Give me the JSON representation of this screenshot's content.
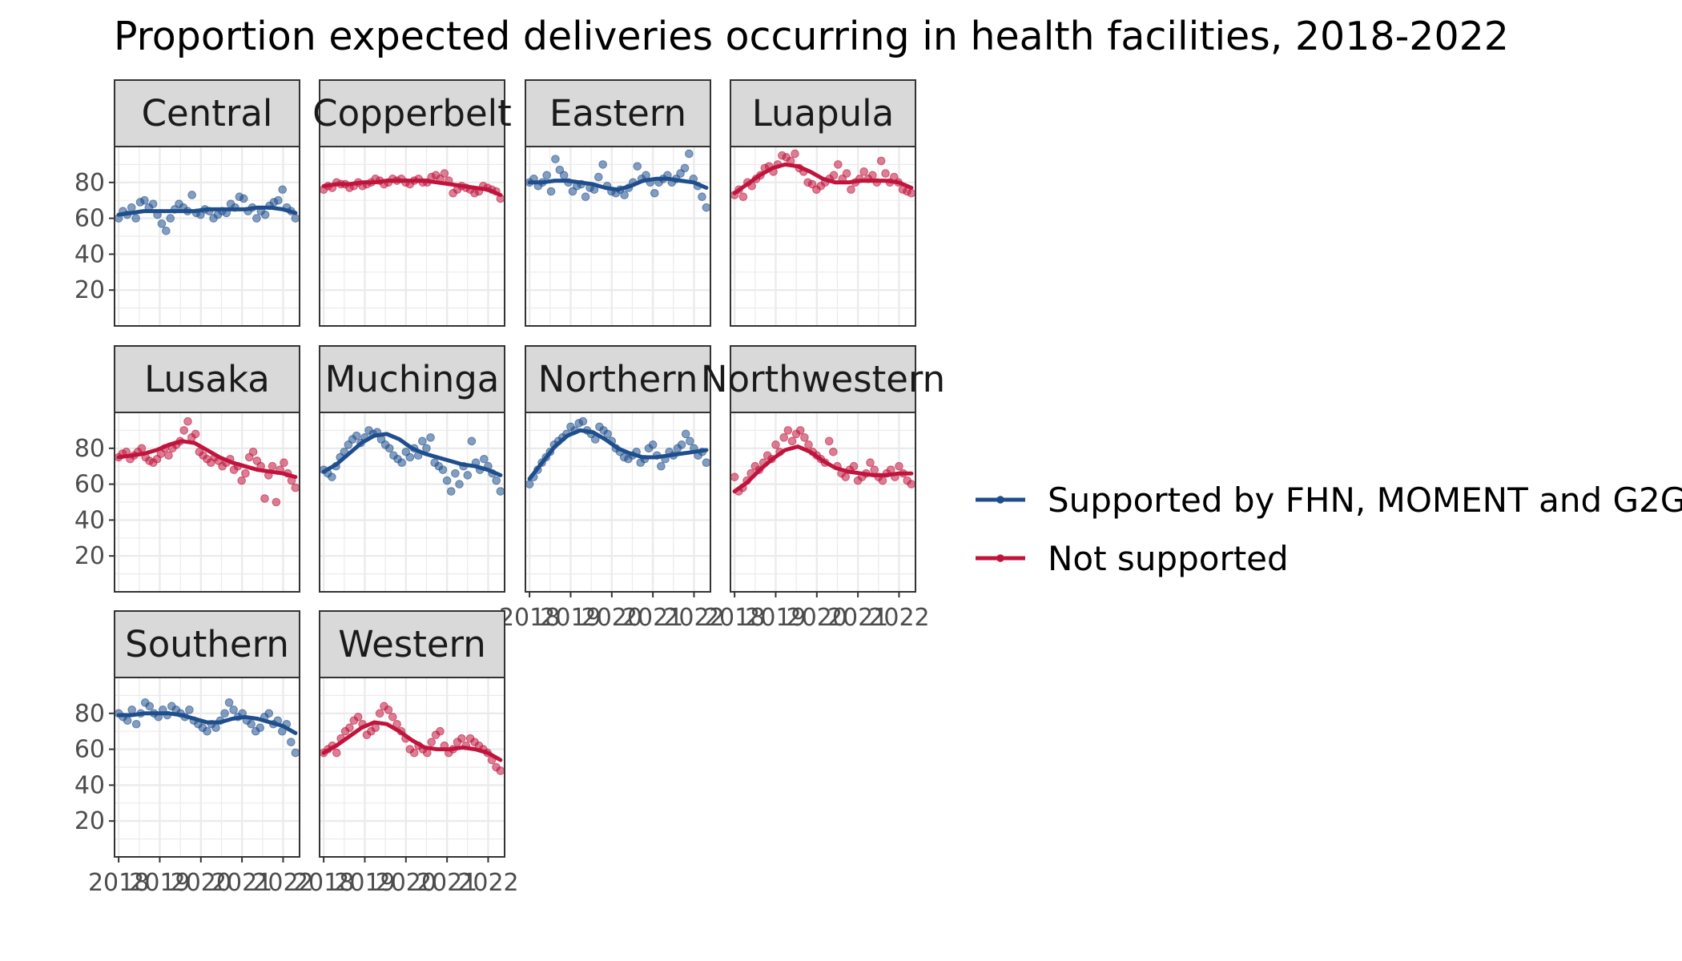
{
  "chart_data": {
    "type": "line",
    "title": "Proportion expected deliveries occurring in health facilities, 2018-2022",
    "xlabel": "",
    "ylabel": "",
    "x_ticks": [
      "2018",
      "2019",
      "2020",
      "2021",
      "2022"
    ],
    "y_ticks": [
      20,
      40,
      60,
      80
    ],
    "ylim": [
      0,
      100
    ],
    "xlim": [
      2017.9,
      2022.4
    ],
    "grid": true,
    "legend_position": "right",
    "colors": {
      "supported": "#1f4e8c",
      "not_supported": "#c0143c"
    },
    "legend": [
      {
        "key": "supported",
        "label": "Supported by FHN, MOMENT and G2G"
      },
      {
        "key": "not_supported",
        "label": "Not supported"
      }
    ],
    "panels": [
      {
        "name": "Central",
        "group": "supported",
        "points": [
          60,
          64,
          62,
          66,
          60,
          69,
          70,
          66,
          68,
          62,
          57,
          53,
          60,
          65,
          68,
          66,
          64,
          73,
          63,
          62,
          65,
          64,
          60,
          62,
          64,
          63,
          68,
          66,
          72,
          71,
          64,
          66,
          60,
          64,
          62,
          67,
          69,
          70,
          76,
          66,
          64,
          60
        ],
        "trend": [
          62,
          63,
          64,
          64,
          64,
          64,
          64,
          65,
          65,
          65,
          65,
          66,
          66,
          65,
          63
        ]
      },
      {
        "name": "Copperbelt",
        "group": "not_supported",
        "points": [
          76,
          78,
          77,
          80,
          79,
          79,
          77,
          78,
          80,
          78,
          79,
          80,
          82,
          81,
          79,
          80,
          82,
          81,
          82,
          80,
          79,
          81,
          82,
          80,
          80,
          83,
          84,
          82,
          85,
          81,
          74,
          76,
          78,
          77,
          76,
          74,
          75,
          78,
          77,
          76,
          75,
          71
        ],
        "trend": [
          78,
          79,
          79,
          80,
          80,
          81,
          81,
          81,
          81,
          80,
          79,
          78,
          77,
          76,
          73
        ]
      },
      {
        "name": "Eastern",
        "group": "supported",
        "points": [
          80,
          82,
          78,
          80,
          84,
          75,
          93,
          87,
          84,
          80,
          75,
          78,
          79,
          72,
          77,
          76,
          83,
          90,
          78,
          75,
          74,
          76,
          73,
          77,
          80,
          89,
          82,
          84,
          80,
          74,
          80,
          82,
          84,
          80,
          82,
          85,
          88,
          96,
          82,
          78,
          72,
          66
        ],
        "trend": [
          80,
          80,
          81,
          81,
          80,
          79,
          77,
          76,
          78,
          81,
          82,
          82,
          81,
          80,
          77
        ]
      },
      {
        "name": "Luapula",
        "group": "not_supported",
        "points": [
          73,
          76,
          72,
          80,
          78,
          82,
          84,
          88,
          89,
          86,
          90,
          95,
          94,
          92,
          96,
          88,
          86,
          80,
          79,
          76,
          78,
          80,
          82,
          84,
          90,
          82,
          85,
          76,
          80,
          82,
          86,
          82,
          84,
          80,
          92,
          85,
          80,
          83,
          80,
          76,
          75,
          74
        ],
        "trend": [
          74,
          79,
          84,
          88,
          90,
          89,
          86,
          82,
          80,
          80,
          81,
          81,
          81,
          80,
          77
        ]
      },
      {
        "name": "Lusaka",
        "group": "not_supported",
        "points": [
          75,
          77,
          78,
          74,
          76,
          78,
          80,
          75,
          73,
          72,
          74,
          77,
          80,
          76,
          80,
          82,
          84,
          90,
          95,
          86,
          88,
          78,
          76,
          74,
          72,
          75,
          73,
          70,
          72,
          74,
          68,
          70,
          62,
          66,
          75,
          78,
          73,
          70,
          52,
          65,
          70,
          50,
          68,
          72,
          66,
          62,
          58
        ],
        "trend": [
          75,
          76,
          77,
          79,
          82,
          84,
          83,
          79,
          75,
          72,
          70,
          68,
          67,
          66,
          64
        ]
      },
      {
        "name": "Muchinga",
        "group": "supported",
        "points": [
          68,
          66,
          64,
          70,
          75,
          78,
          82,
          85,
          87,
          83,
          86,
          90,
          88,
          89,
          85,
          82,
          80,
          76,
          74,
          72,
          78,
          75,
          80,
          76,
          84,
          80,
          86,
          72,
          70,
          68,
          62,
          56,
          66,
          60,
          70,
          65,
          84,
          72,
          68,
          74,
          70,
          66,
          62,
          56
        ],
        "trend": [
          67,
          71,
          77,
          83,
          87,
          88,
          85,
          80,
          77,
          75,
          73,
          71,
          70,
          68,
          65
        ]
      },
      {
        "name": "Northern",
        "group": "supported",
        "points": [
          60,
          64,
          68,
          72,
          75,
          78,
          82,
          84,
          86,
          88,
          92,
          90,
          94,
          95,
          90,
          88,
          85,
          92,
          90,
          88,
          84,
          80,
          78,
          75,
          74,
          76,
          78,
          72,
          74,
          80,
          82,
          76,
          70,
          74,
          78,
          76,
          80,
          82,
          88,
          84,
          80,
          76,
          78,
          72
        ],
        "trend": [
          63,
          72,
          81,
          87,
          90,
          89,
          85,
          80,
          77,
          75,
          75,
          76,
          77,
          78,
          79
        ]
      },
      {
        "name": "Northwestern",
        "group": "not_supported",
        "points": [
          64,
          56,
          58,
          62,
          66,
          70,
          68,
          72,
          76,
          74,
          82,
          78,
          86,
          90,
          84,
          88,
          90,
          86,
          82,
          78,
          76,
          74,
          72,
          84,
          78,
          70,
          66,
          64,
          68,
          70,
          62,
          64,
          66,
          72,
          68,
          64,
          62,
          66,
          68,
          64,
          70,
          66,
          62,
          60
        ],
        "trend": [
          56,
          61,
          68,
          74,
          79,
          81,
          78,
          73,
          69,
          67,
          66,
          65,
          65,
          66,
          66
        ]
      },
      {
        "name": "Southern",
        "group": "supported",
        "points": [
          80,
          78,
          76,
          82,
          74,
          80,
          86,
          84,
          80,
          78,
          82,
          79,
          84,
          82,
          80,
          78,
          82,
          76,
          74,
          72,
          70,
          74,
          72,
          76,
          80,
          86,
          82,
          78,
          80,
          76,
          74,
          70,
          72,
          78,
          80,
          74,
          76,
          70,
          74,
          64,
          58
        ],
        "trend": [
          79,
          79,
          80,
          80,
          80,
          79,
          77,
          75,
          75,
          77,
          78,
          77,
          75,
          73,
          69
        ]
      },
      {
        "name": "Western",
        "group": "not_supported",
        "points": [
          58,
          60,
          62,
          58,
          66,
          70,
          72,
          76,
          78,
          74,
          68,
          70,
          72,
          80,
          84,
          82,
          78,
          74,
          70,
          66,
          60,
          58,
          62,
          60,
          58,
          64,
          68,
          70,
          62,
          58,
          60,
          64,
          66,
          62,
          66,
          64,
          62,
          60,
          58,
          54,
          50,
          48
        ],
        "trend": [
          58,
          62,
          67,
          72,
          75,
          74,
          70,
          65,
          61,
          60,
          60,
          61,
          60,
          58,
          54
        ]
      }
    ]
  }
}
